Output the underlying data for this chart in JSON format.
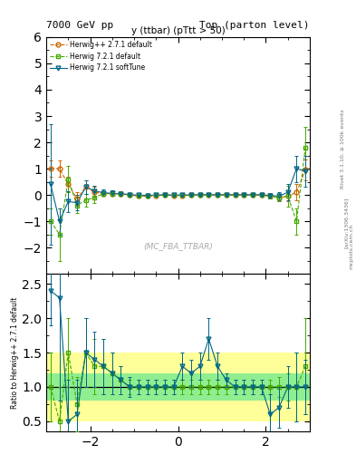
{
  "title_left": "7000 GeV pp",
  "title_right": "Top (parton level)",
  "plot_title": "y (ttbar) (pTtt > 50)",
  "watermark": "(MC_FBA_TTBAR)",
  "right_label": "Rivet 3.1.10, ≥ 100k events",
  "arxiv_label": "[arXiv:1306.3436]",
  "mcplots_label": "mcplots.cern.ch",
  "ylabel_ratio": "Ratio to Herwig++ 2.7.1 default",
  "xlim": [
    -3.0,
    3.0
  ],
  "ylim_main": [
    -3.0,
    6.0
  ],
  "ylim_ratio": [
    0.35,
    2.65
  ],
  "yticks_main": [
    -2,
    -1,
    0,
    1,
    2,
    3,
    4,
    5,
    6
  ],
  "yticks_ratio": [
    0.5,
    1.0,
    1.5,
    2.0,
    2.5
  ],
  "xticks": [
    -2,
    0,
    2
  ],
  "series": [
    {
      "label": "Herwig++ 2.7.1 default",
      "color": "#cc6600",
      "marker": "o",
      "linestyle": "--",
      "linewidth": 0.8,
      "markersize": 3.5
    },
    {
      "label": "Herwig 7.2.1 default",
      "color": "#44aa00",
      "marker": "s",
      "linestyle": "--",
      "linewidth": 0.8,
      "markersize": 3.5
    },
    {
      "label": "Herwig 7.2.1 softTune",
      "color": "#006688",
      "marker": "v",
      "linestyle": "-",
      "linewidth": 0.8,
      "markersize": 3.5
    }
  ],
  "x_edges": [
    -3.0,
    -2.8,
    -2.6,
    -2.4,
    -2.2,
    -2.0,
    -1.8,
    -1.6,
    -1.4,
    -1.2,
    -1.0,
    -0.8,
    -0.6,
    -0.4,
    -0.2,
    0.0,
    0.2,
    0.4,
    0.6,
    0.8,
    1.0,
    1.2,
    1.4,
    1.6,
    1.8,
    2.0,
    2.2,
    2.4,
    2.6,
    2.8,
    3.0
  ],
  "herwig271_y": [
    1.0,
    1.0,
    0.4,
    -0.15,
    0.3,
    0.1,
    0.05,
    0.05,
    0.05,
    0.0,
    -0.05,
    -0.05,
    -0.02,
    0.0,
    -0.02,
    -0.02,
    -0.01,
    0.0,
    0.0,
    0.0,
    0.0,
    0.0,
    0.0,
    0.0,
    0.0,
    -0.05,
    -0.1,
    -0.05,
    0.1,
    0.95
  ],
  "herwig271_yerr": [
    0.3,
    0.3,
    0.3,
    0.25,
    0.25,
    0.2,
    0.1,
    0.1,
    0.08,
    0.06,
    0.05,
    0.04,
    0.04,
    0.03,
    0.02,
    0.02,
    0.02,
    0.02,
    0.02,
    0.02,
    0.02,
    0.03,
    0.03,
    0.04,
    0.05,
    0.1,
    0.15,
    0.2,
    0.3,
    0.4
  ],
  "herwig721_y": [
    -1.0,
    -1.5,
    0.6,
    -0.4,
    -0.2,
    -0.1,
    0.05,
    0.05,
    0.03,
    0.0,
    -0.03,
    -0.03,
    -0.01,
    0.0,
    -0.01,
    -0.01,
    0.0,
    0.0,
    0.0,
    0.0,
    0.0,
    0.0,
    0.0,
    0.0,
    0.0,
    -0.05,
    -0.1,
    -0.05,
    -1.0,
    1.8
  ],
  "herwig721_yerr": [
    0.5,
    1.0,
    0.5,
    0.3,
    0.25,
    0.2,
    0.1,
    0.1,
    0.08,
    0.06,
    0.05,
    0.04,
    0.04,
    0.03,
    0.02,
    0.02,
    0.02,
    0.02,
    0.02,
    0.02,
    0.02,
    0.03,
    0.03,
    0.04,
    0.05,
    0.1,
    0.15,
    0.4,
    0.5,
    0.8
  ],
  "herwig721st_y": [
    0.4,
    -1.0,
    -0.25,
    -0.3,
    0.3,
    0.15,
    0.08,
    0.06,
    0.04,
    0.01,
    -0.01,
    -0.02,
    -0.01,
    0.0,
    -0.01,
    -0.01,
    0.0,
    0.0,
    0.0,
    0.0,
    0.0,
    0.0,
    0.0,
    0.0,
    0.0,
    -0.02,
    -0.05,
    0.1,
    1.0,
    0.9
  ],
  "herwig721st_yerr": [
    2.3,
    0.5,
    0.4,
    0.3,
    0.25,
    0.2,
    0.12,
    0.1,
    0.08,
    0.06,
    0.05,
    0.04,
    0.04,
    0.03,
    0.02,
    0.02,
    0.02,
    0.02,
    0.02,
    0.02,
    0.02,
    0.03,
    0.03,
    0.04,
    0.05,
    0.1,
    0.15,
    0.3,
    0.5,
    0.6
  ],
  "ratio721_y": [
    1.0,
    0.5,
    1.5,
    0.75,
    1.5,
    1.3,
    1.3,
    1.2,
    1.1,
    1.0,
    1.0,
    1.0,
    1.0,
    1.0,
    1.0,
    1.0,
    1.0,
    1.0,
    1.0,
    1.0,
    1.0,
    1.0,
    1.0,
    1.0,
    1.0,
    1.0,
    1.0,
    1.0,
    1.0,
    1.3
  ],
  "ratio721_yerr": [
    0.5,
    0.5,
    0.5,
    0.4,
    0.5,
    0.4,
    0.4,
    0.3,
    0.2,
    0.1,
    0.1,
    0.1,
    0.1,
    0.1,
    0.1,
    0.1,
    0.1,
    0.1,
    0.1,
    0.1,
    0.1,
    0.1,
    0.1,
    0.1,
    0.1,
    0.1,
    0.15,
    0.2,
    0.5,
    0.7
  ],
  "ratioST_y": [
    2.4,
    2.3,
    0.5,
    0.6,
    1.5,
    1.4,
    1.3,
    1.2,
    1.1,
    1.0,
    1.0,
    1.0,
    1.0,
    1.0,
    1.0,
    1.3,
    1.2,
    1.3,
    1.7,
    1.3,
    1.1,
    1.0,
    1.0,
    1.0,
    1.0,
    0.6,
    0.7,
    1.0,
    1.0,
    1.0
  ],
  "ratioST_yerr": [
    0.5,
    1.5,
    0.6,
    0.5,
    0.5,
    0.4,
    0.4,
    0.3,
    0.2,
    0.15,
    0.1,
    0.1,
    0.1,
    0.1,
    0.1,
    0.2,
    0.2,
    0.2,
    0.3,
    0.2,
    0.1,
    0.1,
    0.1,
    0.1,
    0.1,
    0.3,
    0.3,
    0.3,
    0.5,
    0.4
  ],
  "bg_green": "#90ee90",
  "bg_yellow": "#ffff99"
}
